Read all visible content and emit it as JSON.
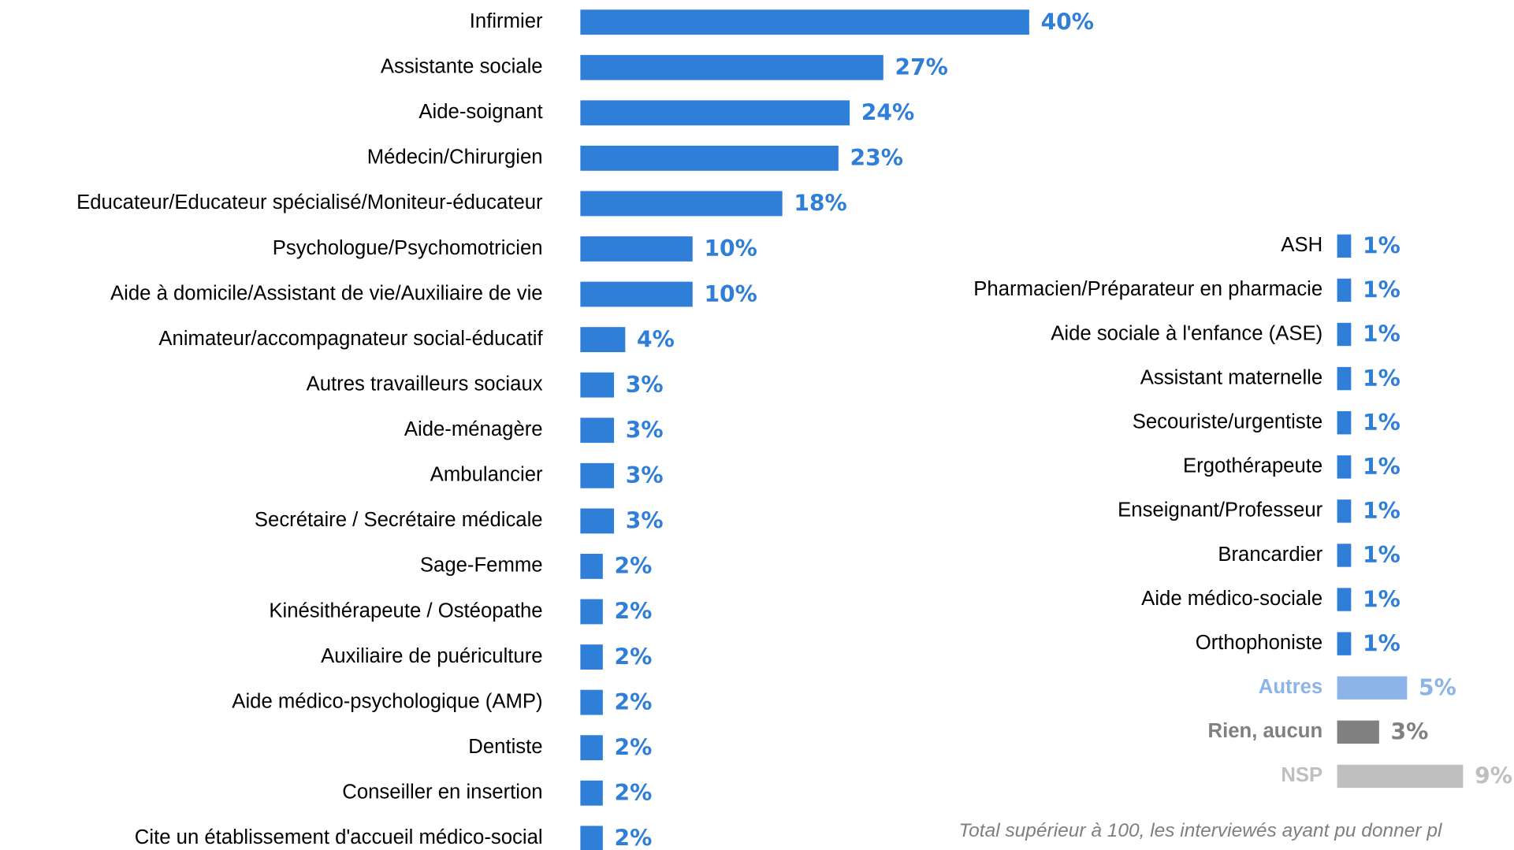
{
  "chart_data": [
    {
      "type": "barh",
      "categories": [
        "Infirmier",
        "Assistante sociale",
        "Aide-soignant",
        "Médecin/Chirurgien",
        "Educateur/Educateur spécialisé/Moniteur-éducateur",
        "Psychologue/Psychomotricien",
        "Aide à domicile/Assistant de vie/Auxiliaire de vie",
        "Animateur/accompagnateur social-éducatif",
        "Autres travailleurs sociaux",
        "Aide-ménagère",
        "Ambulancier",
        "Secrétaire / Secrétaire médicale",
        "Sage-Femme",
        "Kinésithérapeute / Ostéopathe",
        "Auxiliaire de puériculture",
        "Aide médico-psychologique (AMP)",
        "Dentiste",
        "Conseiller en insertion",
        "Cite un établissement d'accueil médico-social"
      ],
      "values": [
        40,
        27,
        24,
        23,
        18,
        10,
        10,
        4,
        3,
        3,
        3,
        3,
        2,
        2,
        2,
        2,
        2,
        2,
        2
      ],
      "value_labels": [
        "40%",
        "27%",
        "24%",
        "23%",
        "18%",
        "10%",
        "10%",
        "4%",
        "3%",
        "3%",
        "3%",
        "3%",
        "2%",
        "2%",
        "2%",
        "2%",
        "2%",
        "2%",
        "2%"
      ],
      "color": "#2f7ed8"
    },
    {
      "type": "barh",
      "categories": [
        "ASH",
        "Pharmacien/Préparateur en pharmacie",
        "Aide sociale à l'enfance (ASE)",
        "Assistant maternelle",
        "Secouriste/urgentiste",
        "Ergothérapeute",
        "Enseignant/Professeur",
        "Brancardier",
        "Aide médico-sociale",
        "Orthophoniste",
        "Autres",
        "Rien, aucun",
        "NSP"
      ],
      "values": [
        1,
        1,
        1,
        1,
        1,
        1,
        1,
        1,
        1,
        1,
        5,
        3,
        9
      ],
      "value_labels": [
        "1%",
        "1%",
        "1%",
        "1%",
        "1%",
        "1%",
        "1%",
        "1%",
        "1%",
        "1%",
        "5%",
        "3%",
        "9%"
      ],
      "color": "#2f7ed8",
      "colors": [
        "#2f7ed8",
        "#2f7ed8",
        "#2f7ed8",
        "#2f7ed8",
        "#2f7ed8",
        "#2f7ed8",
        "#2f7ed8",
        "#2f7ed8",
        "#2f7ed8",
        "#2f7ed8",
        "#8db4e8",
        "#808080",
        "#bfbfbf"
      ],
      "note": "Total supérieur à 100, les interviewés ayant pu donner pl"
    }
  ]
}
